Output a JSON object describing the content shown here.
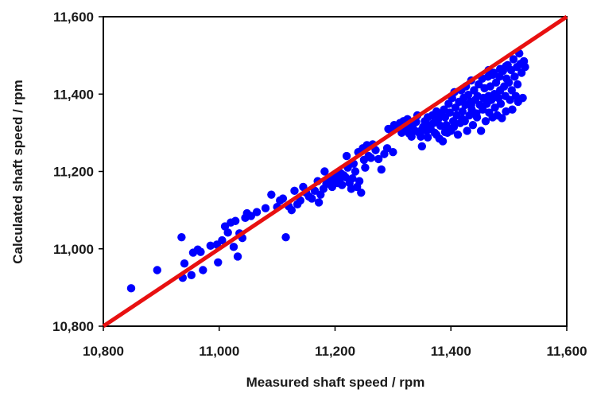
{
  "chart_data": {
    "type": "scatter",
    "title": "",
    "xlabel": "Measured shaft speed / rpm",
    "ylabel": "Calculated shaft speed / rpm",
    "xlim": [
      10800,
      11600
    ],
    "ylim": [
      10800,
      11600
    ],
    "xticks": [
      10800,
      11000,
      11200,
      11400,
      11600
    ],
    "yticks": [
      10800,
      11000,
      11200,
      11400,
      11600
    ],
    "xtick_labels": [
      "10,800",
      "11,000",
      "11,200",
      "11,400",
      "11,600"
    ],
    "ytick_labels": [
      "10,800",
      "11,000",
      "11,200",
      "11,400",
      "11,600"
    ],
    "grid": false,
    "point_color": "#0000ff",
    "reference_line": {
      "x": [
        10800,
        11600
      ],
      "y": [
        10800,
        11600
      ],
      "color": "#e81010"
    },
    "points": [
      [
        10848,
        10898
      ],
      [
        10893,
        10945
      ],
      [
        10935,
        11030
      ],
      [
        10937,
        10925
      ],
      [
        10940,
        10962
      ],
      [
        10952,
        10932
      ],
      [
        10955,
        10990
      ],
      [
        10963,
        10998
      ],
      [
        10968,
        10992
      ],
      [
        10972,
        10945
      ],
      [
        10985,
        11008
      ],
      [
        10996,
        11011
      ],
      [
        10998,
        10965
      ],
      [
        11005,
        11022
      ],
      [
        11010,
        11058
      ],
      [
        11015,
        11042
      ],
      [
        11020,
        11068
      ],
      [
        11025,
        11005
      ],
      [
        11028,
        11072
      ],
      [
        11032,
        10980
      ],
      [
        11035,
        11040
      ],
      [
        11040,
        11028
      ],
      [
        11045,
        11080
      ],
      [
        11048,
        11092
      ],
      [
        11055,
        11085
      ],
      [
        11065,
        11095
      ],
      [
        11080,
        11105
      ],
      [
        11090,
        11140
      ],
      [
        11100,
        11108
      ],
      [
        11105,
        11125
      ],
      [
        11110,
        11130
      ],
      [
        11115,
        11030
      ],
      [
        11120,
        11110
      ],
      [
        11125,
        11100
      ],
      [
        11130,
        11150
      ],
      [
        11135,
        11115
      ],
      [
        11140,
        11125
      ],
      [
        11145,
        11160
      ],
      [
        11150,
        11145
      ],
      [
        11155,
        11135
      ],
      [
        11160,
        11130
      ],
      [
        11165,
        11150
      ],
      [
        11170,
        11175
      ],
      [
        11172,
        11120
      ],
      [
        11175,
        11140
      ],
      [
        11180,
        11155
      ],
      [
        11182,
        11200
      ],
      [
        11185,
        11168
      ],
      [
        11190,
        11178
      ],
      [
        11195,
        11160
      ],
      [
        11198,
        11190
      ],
      [
        11200,
        11175
      ],
      [
        11205,
        11170
      ],
      [
        11208,
        11180
      ],
      [
        11210,
        11195
      ],
      [
        11212,
        11165
      ],
      [
        11215,
        11190
      ],
      [
        11218,
        11185
      ],
      [
        11220,
        11240
      ],
      [
        11222,
        11210
      ],
      [
        11225,
        11170
      ],
      [
        11228,
        11155
      ],
      [
        11230,
        11182
      ],
      [
        11232,
        11220
      ],
      [
        11235,
        11200
      ],
      [
        11238,
        11160
      ],
      [
        11240,
        11250
      ],
      [
        11242,
        11175
      ],
      [
        11245,
        11145
      ],
      [
        11248,
        11260
      ],
      [
        11250,
        11230
      ],
      [
        11252,
        11210
      ],
      [
        11255,
        11268
      ],
      [
        11258,
        11240
      ],
      [
        11262,
        11235
      ],
      [
        11265,
        11270
      ],
      [
        11270,
        11255
      ],
      [
        11275,
        11232
      ],
      [
        11280,
        11205
      ],
      [
        11285,
        11245
      ],
      [
        11290,
        11260
      ],
      [
        11292,
        11310
      ],
      [
        11295,
        11308
      ],
      [
        11300,
        11250
      ],
      [
        11302,
        11320
      ],
      [
        11305,
        11312
      ],
      [
        11310,
        11315
      ],
      [
        11312,
        11325
      ],
      [
        11315,
        11300
      ],
      [
        11318,
        11330
      ],
      [
        11320,
        11322
      ],
      [
        11322,
        11310
      ],
      [
        11325,
        11335
      ],
      [
        11328,
        11298
      ],
      [
        11330,
        11318
      ],
      [
        11332,
        11290
      ],
      [
        11335,
        11322
      ],
      [
        11338,
        11305
      ],
      [
        11340,
        11328
      ],
      [
        11342,
        11345
      ],
      [
        11345,
        11300
      ],
      [
        11348,
        11290
      ],
      [
        11350,
        11265
      ],
      [
        11352,
        11315
      ],
      [
        11355,
        11330
      ],
      [
        11358,
        11305
      ],
      [
        11360,
        11340
      ],
      [
        11362,
        11320
      ],
      [
        11365,
        11310
      ],
      [
        11368,
        11345
      ],
      [
        11370,
        11325
      ],
      [
        11372,
        11300
      ],
      [
        11375,
        11355
      ],
      [
        11378,
        11335
      ],
      [
        11380,
        11285
      ],
      [
        11382,
        11318
      ],
      [
        11384,
        11345
      ],
      [
        11386,
        11278
      ],
      [
        11388,
        11360
      ],
      [
        11390,
        11340
      ],
      [
        11392,
        11320
      ],
      [
        11394,
        11300
      ],
      [
        11396,
        11375
      ],
      [
        11398,
        11352
      ],
      [
        11400,
        11305
      ],
      [
        11402,
        11390
      ],
      [
        11404,
        11330
      ],
      [
        11406,
        11405
      ],
      [
        11408,
        11365
      ],
      [
        11410,
        11345
      ],
      [
        11412,
        11295
      ],
      [
        11414,
        11380
      ],
      [
        11416,
        11325
      ],
      [
        11418,
        11410
      ],
      [
        11420,
        11355
      ],
      [
        11422,
        11390
      ],
      [
        11424,
        11330
      ],
      [
        11425,
        11372
      ],
      [
        11426,
        11420
      ],
      [
        11428,
        11305
      ],
      [
        11430,
        11398
      ],
      [
        11432,
        11345
      ],
      [
        11434,
        11380
      ],
      [
        11435,
        11435
      ],
      [
        11436,
        11360
      ],
      [
        11438,
        11320
      ],
      [
        11440,
        11410
      ],
      [
        11442,
        11385
      ],
      [
        11444,
        11350
      ],
      [
        11445,
        11340
      ],
      [
        11446,
        11395
      ],
      [
        11448,
        11425
      ],
      [
        11450,
        11372
      ],
      [
        11452,
        11305
      ],
      [
        11454,
        11440
      ],
      [
        11455,
        11360
      ],
      [
        11456,
        11390
      ],
      [
        11458,
        11415
      ],
      [
        11460,
        11330
      ],
      [
        11462,
        11375
      ],
      [
        11464,
        11445
      ],
      [
        11465,
        11395
      ],
      [
        11466,
        11352
      ],
      [
        11468,
        11420
      ],
      [
        11470,
        11385
      ],
      [
        11472,
        11340
      ],
      [
        11474,
        11455
      ],
      [
        11475,
        11400
      ],
      [
        11476,
        11365
      ],
      [
        11478,
        11430
      ],
      [
        11480,
        11345
      ],
      [
        11482,
        11390
      ],
      [
        11484,
        11445
      ],
      [
        11485,
        11410
      ],
      [
        11486,
        11375
      ],
      [
        11488,
        11338
      ],
      [
        11490,
        11460
      ],
      [
        11492,
        11420
      ],
      [
        11494,
        11395
      ],
      [
        11495,
        11355
      ],
      [
        11496,
        11440
      ],
      [
        11498,
        11475
      ],
      [
        11500,
        11430
      ],
      [
        11502,
        11385
      ],
      [
        11504,
        11462
      ],
      [
        11505,
        11410
      ],
      [
        11506,
        11360
      ],
      [
        11508,
        11490
      ],
      [
        11510,
        11445
      ],
      [
        11512,
        11395
      ],
      [
        11514,
        11470
      ],
      [
        11515,
        11425
      ],
      [
        11516,
        11380
      ],
      [
        11518,
        11505
      ],
      [
        11520,
        11478
      ],
      [
        11522,
        11455
      ],
      [
        11524,
        11390
      ],
      [
        11526,
        11485
      ],
      [
        11528,
        11470
      ],
      [
        11465,
        11462
      ],
      [
        11472,
        11450
      ],
      [
        11485,
        11465
      ],
      [
        11495,
        11472
      ],
      [
        11435,
        11372
      ],
      [
        11420,
        11335
      ],
      [
        11405,
        11315
      ],
      [
        11390,
        11302
      ],
      [
        11375,
        11295
      ],
      [
        11360,
        11288
      ],
      [
        11348,
        11305
      ]
    ]
  }
}
